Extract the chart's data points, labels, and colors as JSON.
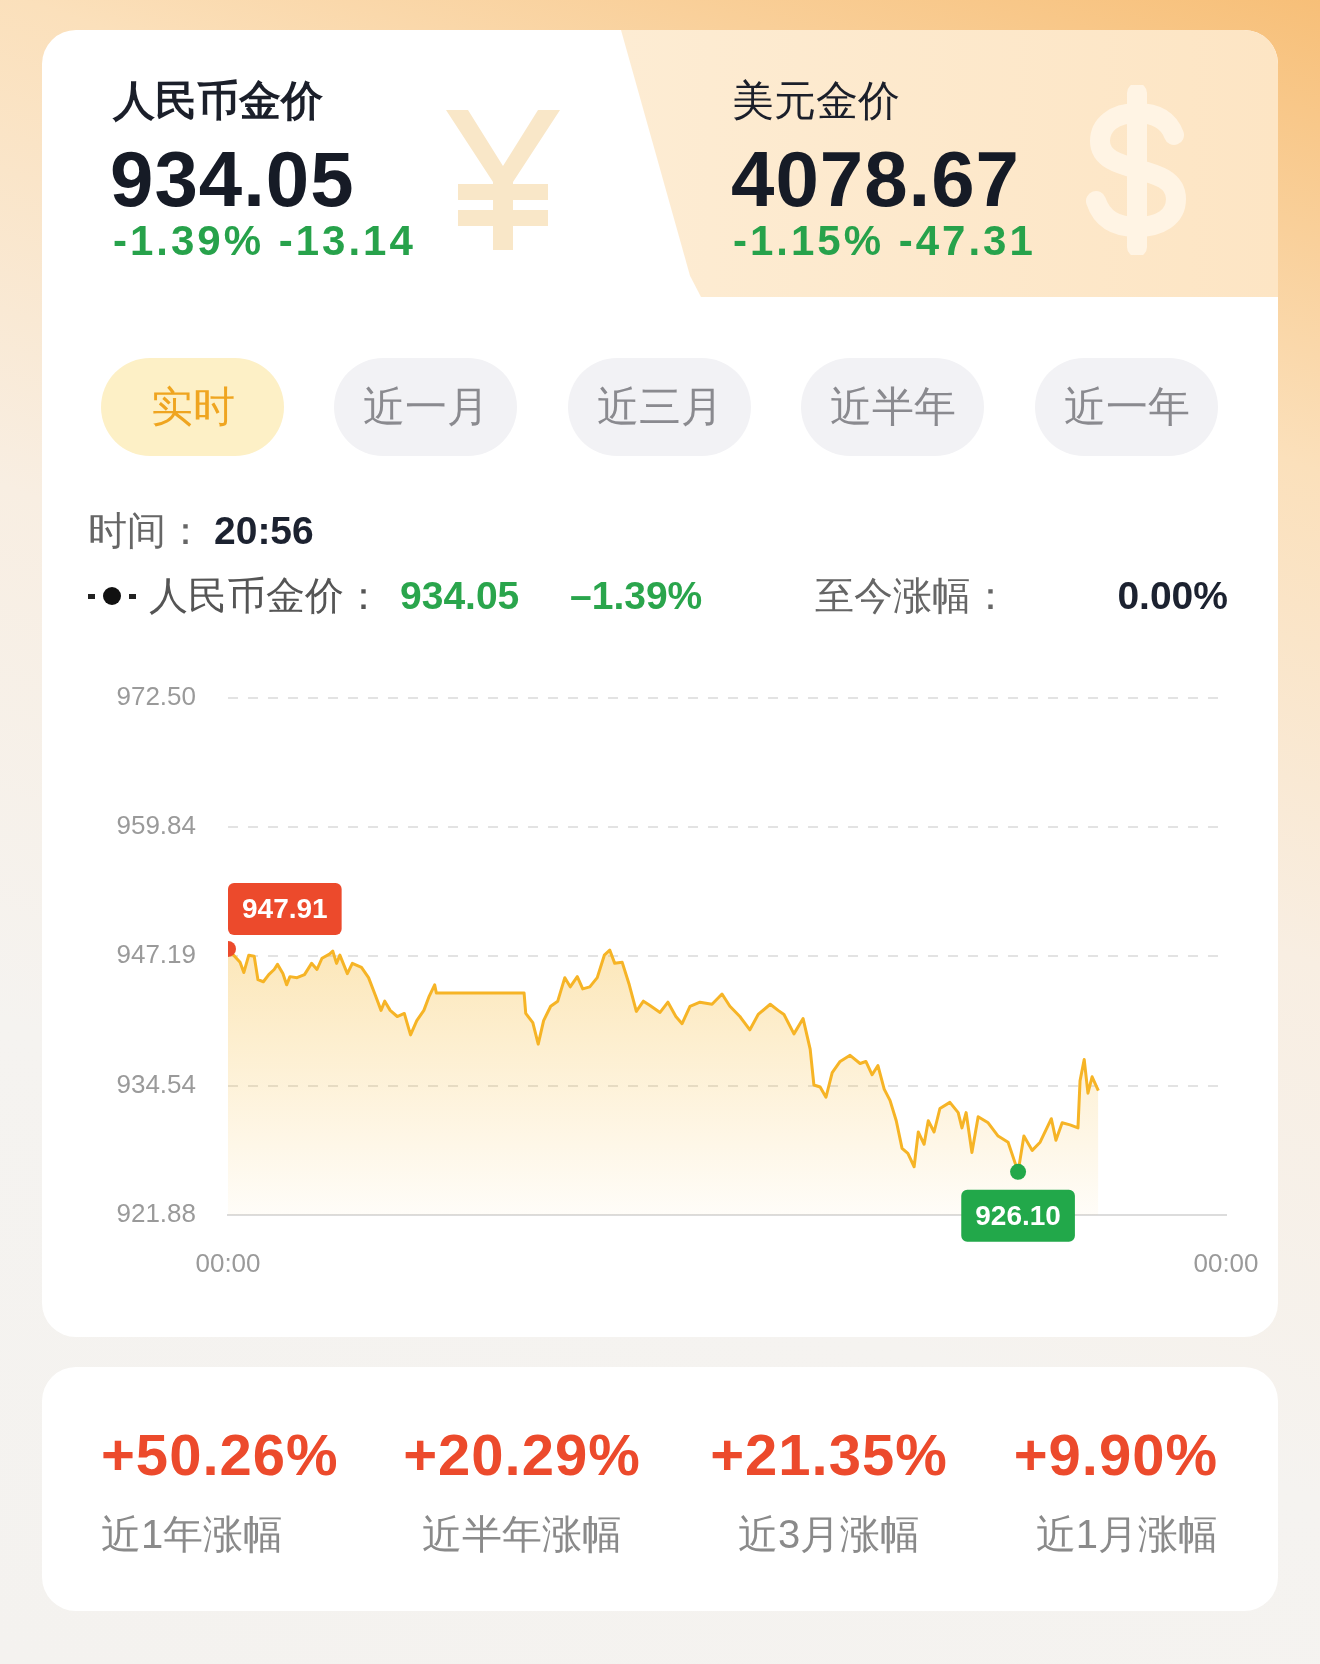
{
  "chart_data": {
    "type": "area",
    "color": "#f6b426",
    "marker": "none",
    "line_style": "solid",
    "grid": "y",
    "xlim": [
      0,
      24
    ],
    "xticks": [
      {
        "value": 0,
        "label": "00:00"
      },
      {
        "value": 24,
        "label": "00:00"
      }
    ],
    "ylim": [
      921.88,
      972.5
    ],
    "yticks": [
      921.88,
      934.54,
      947.19,
      959.84,
      {
        "value": 972.5,
        "label": "972.50"
      }
    ],
    "x": [
      0,
      0.29,
      0.38,
      0.5,
      0.63,
      0.72,
      0.85,
      0.98,
      1.11,
      1.19,
      1.32,
      1.41,
      1.49,
      1.66,
      1.84,
      2.01,
      2.14,
      2.26,
      2.44,
      2.52,
      2.61,
      2.69,
      2.87,
      2.99,
      3.21,
      3.38,
      3.55,
      3.68,
      3.77,
      3.9,
      4.07,
      4.24,
      4.39,
      4.54,
      4.71,
      4.84,
      4.97,
      5.01,
      7.12,
      7.16,
      7.33,
      7.46,
      7.59,
      7.76,
      7.93,
      8.1,
      8.23,
      8.4,
      8.53,
      8.7,
      8.88,
      9.05,
      9.18,
      9.3,
      9.48,
      9.65,
      9.82,
      9.99,
      10.14,
      10.39,
      10.58,
      10.77,
      10.92,
      11.11,
      11.35,
      11.64,
      11.88,
      12.07,
      12.31,
      12.55,
      12.75,
      13.04,
      13.23,
      13.37,
      13.61,
      13.83,
      14.0,
      14.09,
      14.24,
      14.38,
      14.53,
      14.72,
      14.96,
      15.2,
      15.34,
      15.49,
      15.63,
      15.78,
      15.92,
      16.07,
      16.21,
      16.35,
      16.5,
      16.6,
      16.74,
      16.84,
      16.98,
      17.12,
      17.36,
      17.56,
      17.65,
      17.75,
      17.89,
      18.04,
      18.28,
      18.52,
      18.76,
      19.0,
      19.14,
      19.34,
      19.53,
      19.8,
      19.91,
      20.06,
      20.25,
      20.44,
      20.49,
      20.59,
      20.68,
      20.78,
      20.93
    ],
    "values": [
      947.91,
      946.6,
      945.6,
      947.3,
      947.2,
      944.9,
      944.7,
      945.4,
      945.9,
      946.4,
      945.5,
      944.4,
      945.2,
      945.1,
      945.4,
      946.5,
      945.9,
      947.0,
      947.4,
      947.7,
      946.5,
      947.3,
      945.5,
      946.5,
      946.1,
      945.1,
      943.3,
      941.9,
      942.8,
      941.9,
      941.3,
      941.6,
      939.5,
      940.9,
      941.9,
      943.3,
      944.4,
      943.6,
      943.6,
      941.6,
      940.7,
      938.6,
      940.9,
      942.3,
      942.8,
      945.1,
      944.2,
      945.2,
      944.0,
      944.2,
      945.1,
      947.3,
      947.8,
      946.5,
      946.6,
      944.4,
      941.8,
      942.8,
      942.4,
      941.7,
      942.7,
      941.3,
      940.6,
      942.3,
      942.7,
      942.5,
      943.5,
      942.3,
      941.3,
      940.0,
      941.5,
      942.5,
      941.9,
      941.5,
      939.6,
      941.1,
      938.1,
      934.6,
      934.4,
      933.4,
      935.8,
      936.9,
      937.5,
      936.7,
      936.9,
      935.6,
      936.5,
      934.2,
      933.1,
      931.1,
      928.4,
      927.9,
      926.6,
      930.0,
      928.8,
      931.1,
      930.0,
      932.3,
      932.9,
      931.9,
      930.4,
      931.9,
      928.0,
      931.5,
      930.9,
      929.6,
      929.0,
      926.1,
      929.6,
      928.2,
      929.0,
      931.3,
      929.2,
      930.9,
      930.7,
      930.4,
      935.0,
      937.1,
      933.8,
      935.4,
      934.05
    ],
    "annotations": [
      "人民币金价",
      "934.05",
      "-1.39% -13.14",
      "美元金价",
      "4078.67",
      "-1.15% -47.31",
      "实时",
      "近一月",
      "近三月",
      "近半年",
      "近一年",
      "时间：",
      "20:56",
      "人民币金价：",
      "934.05",
      "–1.39%",
      "至今涨幅：",
      "0.00%",
      "+50.26%",
      "近1年涨幅",
      "+20.29%",
      "近半年涨幅",
      "+21.35%",
      "近3月涨幅",
      "+9.90%",
      "近1月涨幅",
      {
        "text": "947.91",
        "x": 0,
        "y": 947.91
      },
      {
        "text": "926.10",
        "x": 19.0,
        "y": 926.1
      }
    ]
  }
}
